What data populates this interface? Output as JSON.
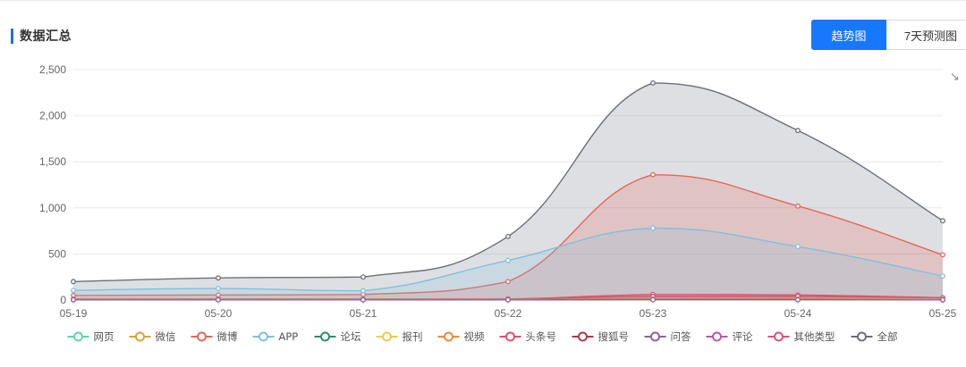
{
  "header": {
    "title": "数据汇总",
    "tabs": [
      {
        "label": "趋势图",
        "active": true
      },
      {
        "label": "7天预测图",
        "active": false
      }
    ]
  },
  "chart_data": {
    "type": "area",
    "categories": [
      "05-19",
      "05-20",
      "05-21",
      "05-22",
      "05-23",
      "05-24",
      "05-25"
    ],
    "ylim": [
      0,
      2500
    ],
    "yticks": [
      0,
      500,
      1000,
      1500,
      2000,
      2500
    ],
    "ytick_labels": [
      "0",
      "500",
      "1,000",
      "1,500",
      "2,000",
      "2,500"
    ],
    "grid": true,
    "legend_position": "bottom",
    "series": [
      {
        "name": "网页",
        "color": "#5fd4a8",
        "values": [
          5,
          5,
          5,
          5,
          10,
          8,
          5
        ]
      },
      {
        "name": "微信",
        "color": "#d9a23a",
        "values": [
          5,
          5,
          5,
          5,
          8,
          6,
          4
        ]
      },
      {
        "name": "微博",
        "color": "#e8655a",
        "values": [
          50,
          55,
          60,
          200,
          1360,
          1020,
          490
        ]
      },
      {
        "name": "APP",
        "color": "#7ec0e0",
        "values": [
          105,
          125,
          100,
          430,
          780,
          580,
          260
        ]
      },
      {
        "name": "论坛",
        "color": "#2e8b6e",
        "values": [
          3,
          3,
          3,
          3,
          5,
          4,
          3
        ]
      },
      {
        "name": "报刊",
        "color": "#f2c84b",
        "values": [
          2,
          2,
          2,
          2,
          3,
          3,
          2
        ]
      },
      {
        "name": "视频",
        "color": "#ed8a3a",
        "values": [
          5,
          5,
          5,
          5,
          15,
          12,
          8
        ]
      },
      {
        "name": "头条号",
        "color": "#e0506a",
        "values": [
          10,
          10,
          10,
          12,
          60,
          55,
          25
        ]
      },
      {
        "name": "搜狐号",
        "color": "#b03a48",
        "values": [
          3,
          3,
          3,
          3,
          5,
          5,
          3
        ]
      },
      {
        "name": "问答",
        "color": "#8a63a8",
        "values": [
          2,
          2,
          2,
          2,
          3,
          3,
          2
        ]
      },
      {
        "name": "评论",
        "color": "#b45aa8",
        "values": [
          2,
          2,
          2,
          2,
          5,
          4,
          2
        ]
      },
      {
        "name": "其他类型",
        "color": "#d9527a",
        "values": [
          10,
          10,
          10,
          12,
          40,
          40,
          25
        ]
      },
      {
        "name": "全部",
        "color": "#6b6f7b",
        "values": [
          200,
          240,
          250,
          690,
          2355,
          1840,
          860
        ]
      }
    ]
  }
}
